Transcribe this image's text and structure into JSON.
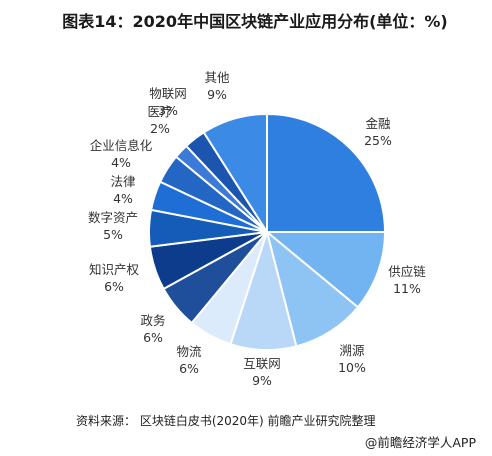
{
  "header": {
    "title": "图表14：2020年中国区块链产业应用分布(单位：%)"
  },
  "chart_data": {
    "type": "pie",
    "title": "图表14：2020年中国区块链产业应用分布(单位：%)",
    "unit": "%",
    "slices": [
      {
        "label": "金融",
        "value": 25,
        "value_text": "25%",
        "color": "#2f7fe0"
      },
      {
        "label": "供应链",
        "value": 11,
        "value_text": "11%",
        "color": "#72b3f2"
      },
      {
        "label": "溯源",
        "value": 10,
        "value_text": "10%",
        "color": "#8ec4f4"
      },
      {
        "label": "互联网",
        "value": 9,
        "value_text": "9%",
        "color": "#b9d8f7"
      },
      {
        "label": "物流",
        "value": 6,
        "value_text": "6%",
        "color": "#dcebfb"
      },
      {
        "label": "政务",
        "value": 6,
        "value_text": "6%",
        "color": "#1f4f9a"
      },
      {
        "label": "知识产权",
        "value": 6,
        "value_text": "6%",
        "color": "#0d3c8c"
      },
      {
        "label": "数字资产",
        "value": 5,
        "value_text": "5%",
        "color": "#155bb8"
      },
      {
        "label": "法律",
        "value": 4,
        "value_text": "4%",
        "color": "#1e6ed6"
      },
      {
        "label": "企业信息化",
        "value": 4,
        "value_text": "4%",
        "color": "#2466c4"
      },
      {
        "label": "医疗",
        "value": 2,
        "value_text": "2%",
        "color": "#3b7ad6"
      },
      {
        "label": "物联网",
        "value": 3,
        "value_text": "3%",
        "color": "#1c55b0"
      },
      {
        "label": "其他",
        "value": 9,
        "value_text": "9%",
        "color": "#3a8ae6"
      }
    ]
  },
  "footer": {
    "source": "资料来源： 区块链白皮书(2020年) 前瞻产业研究院整理",
    "brand": "@前瞻经济学人APP"
  }
}
